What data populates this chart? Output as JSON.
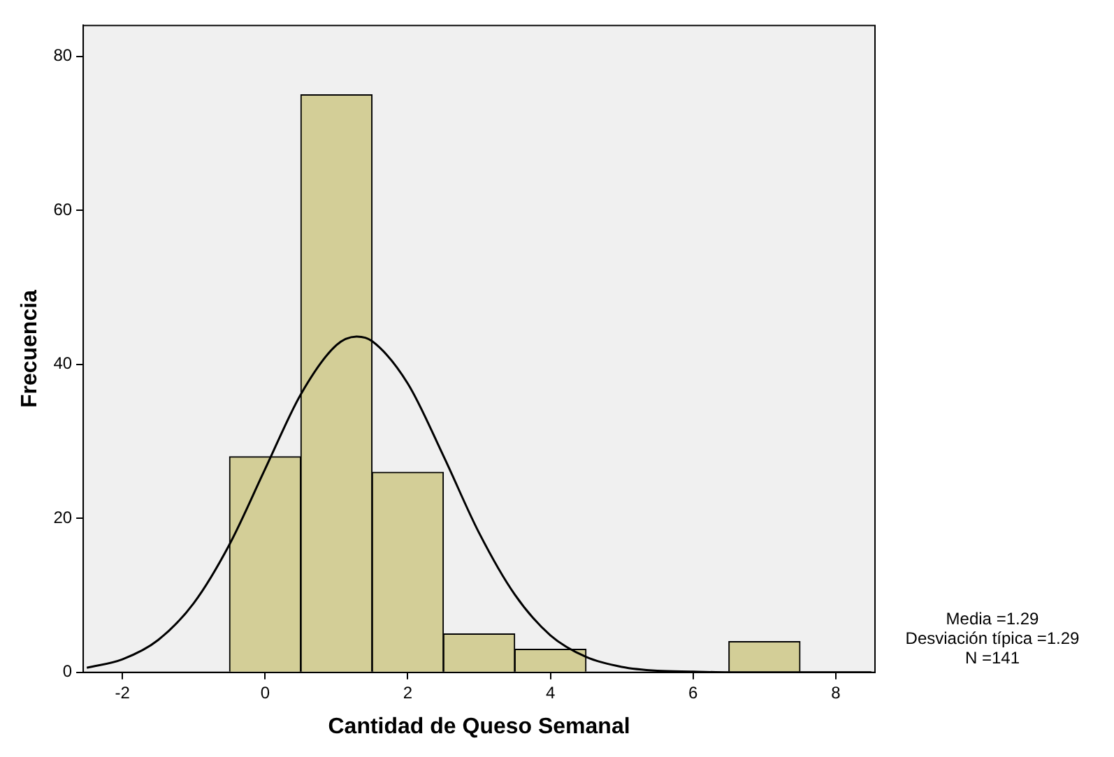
{
  "chart_data": {
    "type": "histogram",
    "xlabel": "Cantidad de Queso Semanal",
    "ylabel": "Frecuencia",
    "bins": [
      -0.5,
      0.5,
      1.5,
      2.5,
      3.5,
      4.5,
      5.5,
      6.5,
      7.5
    ],
    "values": [
      28,
      75,
      26,
      5,
      3,
      0,
      0,
      4
    ],
    "color": "#d3ce97",
    "series": [
      {
        "type": "line",
        "color": "#000000",
        "x": [
          -2.5,
          -2,
          -1.5,
          -1,
          -0.5,
          0,
          0.5,
          1,
          1.29,
          1.5,
          2,
          2.5,
          3,
          3.5,
          4,
          4.5,
          5,
          5.5,
          6,
          6.5,
          7,
          7.5,
          8,
          8.5
        ],
        "values": [
          0.6,
          1.7,
          4.2,
          9,
          16.6,
          26.4,
          36.1,
          42.5,
          43.6,
          43,
          37.5,
          28.1,
          18.1,
          10.1,
          4.8,
          2,
          0.7,
          0.2,
          0.1,
          0,
          0,
          0,
          0,
          0
        ]
      }
    ],
    "xlim": [
      -2.55,
      8.55
    ],
    "xticks": [
      -2,
      0,
      2,
      4,
      6,
      8
    ],
    "ylim": [
      0,
      84
    ],
    "yticks": [
      0,
      20,
      40,
      60,
      80
    ],
    "grid": false,
    "legend": false,
    "marker": "none",
    "annotations": [
      "Media =1.29",
      "Desviación típica =1.29",
      "N =141"
    ]
  }
}
